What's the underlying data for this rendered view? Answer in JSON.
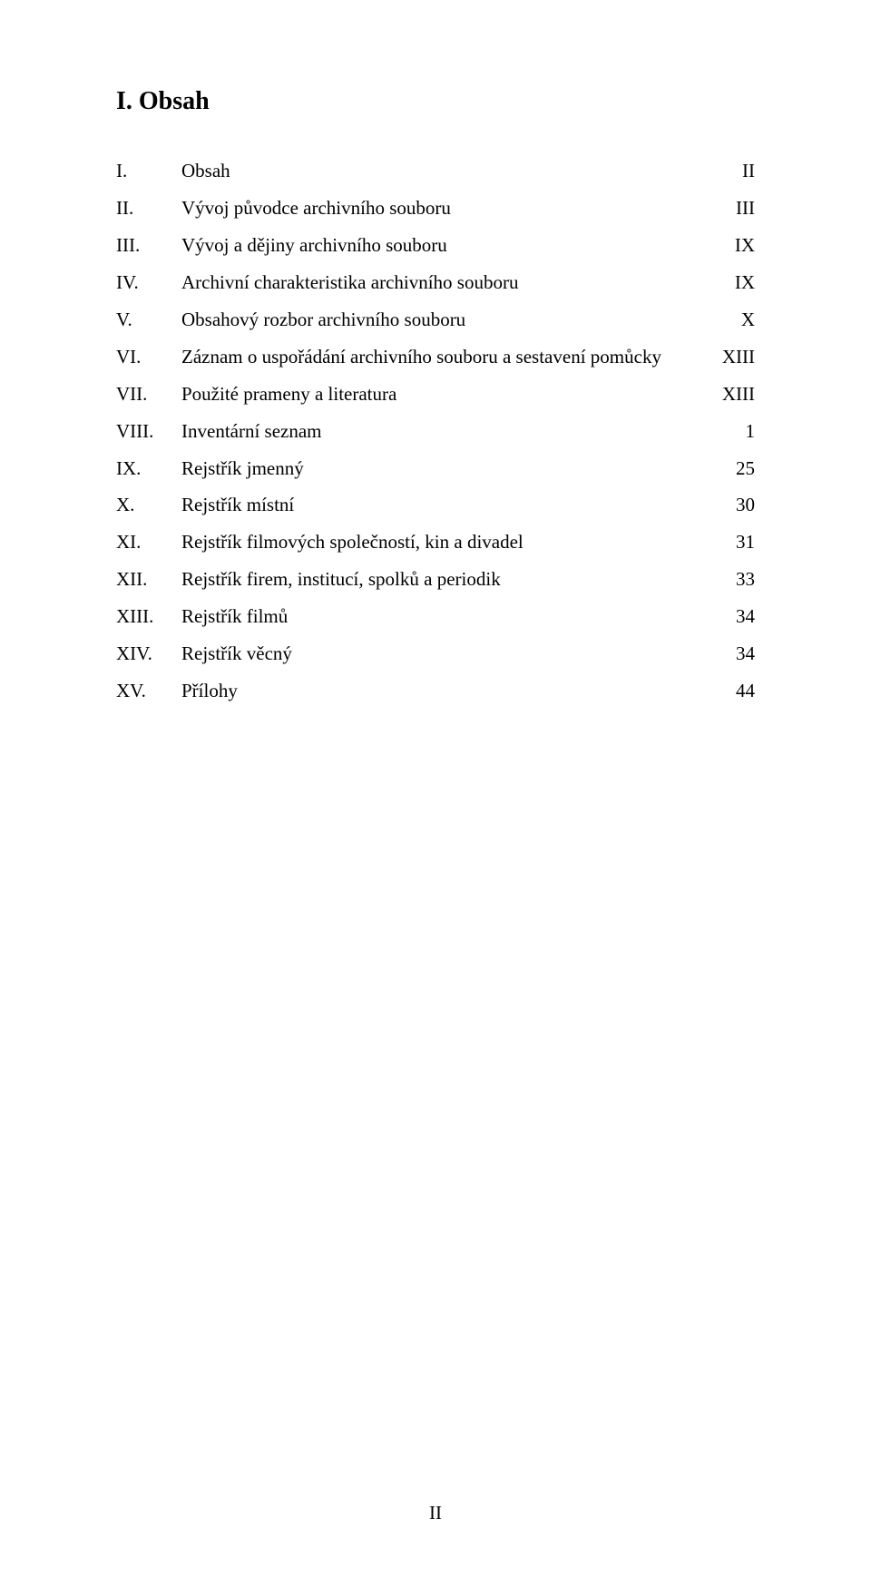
{
  "page": {
    "heading": "I. Obsah",
    "footer": "II"
  },
  "toc": {
    "items": [
      {
        "num": "I.",
        "title": "Obsah",
        "page": "II"
      },
      {
        "num": "II.",
        "title": "Vývoj původce archivního souboru",
        "page": "III"
      },
      {
        "num": "III.",
        "title": "Vývoj a dějiny archivního souboru",
        "page": "IX"
      },
      {
        "num": "IV.",
        "title": "Archivní charakteristika archivního souboru",
        "page": "IX"
      },
      {
        "num": "V.",
        "title": "Obsahový rozbor archivního souboru",
        "page": "X"
      },
      {
        "num": "VI.",
        "title": "Záznam o uspořádání archivního souboru a sestavení pomůcky",
        "page": "XIII"
      },
      {
        "num": "VII.",
        "title": "Použité prameny a literatura",
        "page": "XIII"
      },
      {
        "num": "VIII.",
        "title": "Inventární seznam",
        "page": "1"
      },
      {
        "num": "IX.",
        "title": "Rejstřík jmenný",
        "page": "25"
      },
      {
        "num": "X.",
        "title": "Rejstřík místní",
        "page": "30"
      },
      {
        "num": "XI.",
        "title": "Rejstřík filmových společností, kin a divadel",
        "page": "31"
      },
      {
        "num": "XII.",
        "title": "Rejstřík firem, institucí, spolků a periodik",
        "page": "33"
      },
      {
        "num": "XIII.",
        "title": "Rejstřík filmů",
        "page": "34"
      },
      {
        "num": "XIV.",
        "title": "Rejstřík věcný",
        "page": "34"
      },
      {
        "num": "XV.",
        "title": "Přílohy",
        "page": "44"
      }
    ]
  }
}
